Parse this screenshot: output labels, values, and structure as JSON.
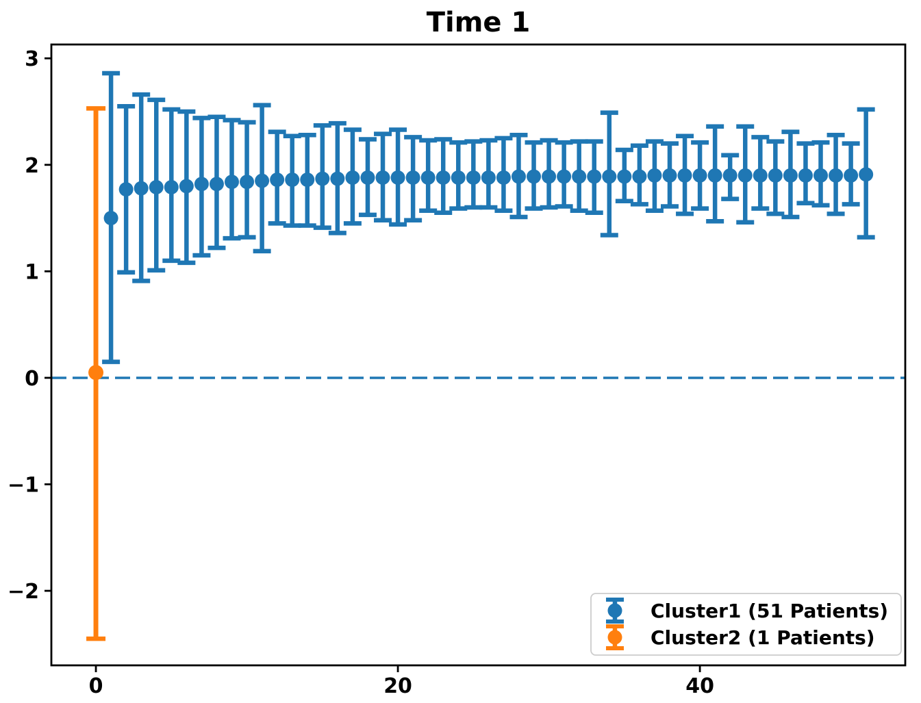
{
  "figure": {
    "background": "#ffffff"
  },
  "chart_data": {
    "type": "errorbar",
    "title": "Time 1",
    "xlabel": "",
    "ylabel": "",
    "grid": false,
    "xlim": [
      -2.95,
      53.6
    ],
    "ylim": [
      -2.7,
      3.13
    ],
    "x_ticks": [
      {
        "v": 0,
        "label": "0"
      },
      {
        "v": 20,
        "label": "20"
      },
      {
        "v": 40,
        "label": "40"
      }
    ],
    "y_ticks": [
      {
        "v": -2,
        "label": "−2"
      },
      {
        "v": -1,
        "label": "−1"
      },
      {
        "v": 0,
        "label": "0"
      },
      {
        "v": 1,
        "label": "1"
      },
      {
        "v": 2,
        "label": "2"
      },
      {
        "v": 3,
        "label": "3"
      }
    ],
    "zero_line": {
      "y": 0,
      "style": "dashed",
      "color": "#1f77b4"
    },
    "point_format": "[x, y, err_low_bound, err_high_bound]",
    "series": [
      {
        "name": "Cluster1 (51 Patients)",
        "color": "#1f77b4",
        "points": [
          [
            1,
            1.5,
            0.15,
            2.86
          ],
          [
            2,
            1.77,
            0.99,
            2.55
          ],
          [
            3,
            1.78,
            0.91,
            2.66
          ],
          [
            4,
            1.79,
            1.01,
            2.61
          ],
          [
            5,
            1.79,
            1.1,
            2.52
          ],
          [
            6,
            1.8,
            1.08,
            2.5
          ],
          [
            7,
            1.82,
            1.15,
            2.44
          ],
          [
            8,
            1.82,
            1.22,
            2.45
          ],
          [
            9,
            1.84,
            1.31,
            2.42
          ],
          [
            10,
            1.84,
            1.32,
            2.4
          ],
          [
            11,
            1.85,
            1.19,
            2.56
          ],
          [
            12,
            1.86,
            1.45,
            2.31
          ],
          [
            13,
            1.86,
            1.43,
            2.27
          ],
          [
            14,
            1.86,
            1.43,
            2.28
          ],
          [
            15,
            1.87,
            1.41,
            2.37
          ],
          [
            16,
            1.87,
            1.36,
            2.39
          ],
          [
            17,
            1.88,
            1.45,
            2.33
          ],
          [
            18,
            1.88,
            1.53,
            2.24
          ],
          [
            19,
            1.88,
            1.48,
            2.29
          ],
          [
            20,
            1.88,
            1.44,
            2.33
          ],
          [
            21,
            1.88,
            1.48,
            2.26
          ],
          [
            22,
            1.88,
            1.57,
            2.23
          ],
          [
            23,
            1.88,
            1.55,
            2.24
          ],
          [
            24,
            1.88,
            1.59,
            2.21
          ],
          [
            25,
            1.88,
            1.6,
            2.22
          ],
          [
            26,
            1.88,
            1.6,
            2.23
          ],
          [
            27,
            1.88,
            1.57,
            2.25
          ],
          [
            28,
            1.89,
            1.51,
            2.28
          ],
          [
            29,
            1.89,
            1.59,
            2.21
          ],
          [
            30,
            1.89,
            1.6,
            2.23
          ],
          [
            31,
            1.89,
            1.61,
            2.21
          ],
          [
            32,
            1.89,
            1.57,
            2.22
          ],
          [
            33,
            1.89,
            1.55,
            2.22
          ],
          [
            34,
            1.89,
            1.34,
            2.49
          ],
          [
            35,
            1.89,
            1.66,
            2.14
          ],
          [
            36,
            1.89,
            1.63,
            2.18
          ],
          [
            37,
            1.9,
            1.57,
            2.22
          ],
          [
            38,
            1.9,
            1.61,
            2.2
          ],
          [
            39,
            1.9,
            1.54,
            2.27
          ],
          [
            40,
            1.9,
            1.59,
            2.21
          ],
          [
            41,
            1.9,
            1.47,
            2.36
          ],
          [
            42,
            1.9,
            1.68,
            2.09
          ],
          [
            43,
            1.9,
            1.46,
            2.36
          ],
          [
            44,
            1.9,
            1.59,
            2.26
          ],
          [
            45,
            1.9,
            1.54,
            2.22
          ],
          [
            46,
            1.9,
            1.51,
            2.31
          ],
          [
            47,
            1.9,
            1.64,
            2.2
          ],
          [
            48,
            1.9,
            1.62,
            2.21
          ],
          [
            49,
            1.9,
            1.54,
            2.28
          ],
          [
            50,
            1.9,
            1.63,
            2.2
          ],
          [
            51,
            1.91,
            1.32,
            2.52
          ]
        ]
      },
      {
        "name": "Cluster2 (1 Patients)",
        "color": "#ff7f0e",
        "points": [
          [
            0,
            0.05,
            -2.45,
            2.53
          ]
        ]
      }
    ],
    "legend": {
      "position": "lower right",
      "entries": [
        {
          "label": "Cluster1 (51 Patients)",
          "color": "#1f77b4"
        },
        {
          "label": "Cluster2 (1 Patients)",
          "color": "#ff7f0e"
        }
      ]
    }
  }
}
